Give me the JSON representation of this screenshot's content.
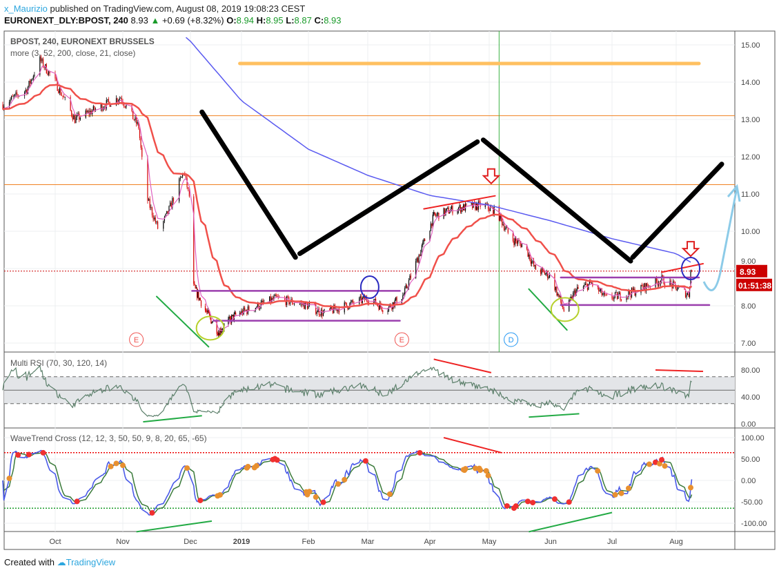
{
  "header": {
    "user": "x_Maurizio",
    "published": "published on TradingView.com, August 08, 2019 19:08:23 CEST",
    "symbol": "EURONEXT_DLY:BPOST, 240",
    "last": "8.93",
    "change": "+0.69 (+8.32%)",
    "o_label": "O:",
    "o": "8.94",
    "h_label": "H:",
    "h": "8.95",
    "l_label": "L:",
    "l": "8.87",
    "c_label": "C:",
    "c": "8.93"
  },
  "footer": {
    "created": "Created with",
    "brand": "TradingView"
  },
  "colors": {
    "up": "#000000",
    "down": "#d50000",
    "ema_fast": "#e060c0",
    "ema_mid": "#f0504a",
    "ma_slow": "#5a5af0",
    "level": "#f08020",
    "target": "#ffc060",
    "accent": "#cc0000"
  },
  "chart_data": [
    {
      "type": "candlestick",
      "title": "BPOST, 240, EURONEXT BRUSSELS",
      "subtitle": "more (3, 52, 200, close, 21, close)",
      "ylim": [
        6.8,
        15.4
      ],
      "yticks": [
        "7.00",
        "8.00",
        "9.00",
        "10.00",
        "11.00",
        "12.00",
        "13.00",
        "14.00",
        "15.00"
      ],
      "last_price": "8.93",
      "countdown": "01:51:38",
      "xticks": [
        {
          "label": "Oct",
          "date": "2018-10-01"
        },
        {
          "label": "Nov",
          "date": "2018-11-01"
        },
        {
          "label": "Dec",
          "date": "2018-12-01"
        },
        {
          "label": "2019",
          "date": "2019-01-01"
        },
        {
          "label": "Feb",
          "date": "2019-02-01"
        },
        {
          "label": "Mar",
          "date": "2019-03-01"
        },
        {
          "label": "Apr",
          "date": "2019-04-01"
        },
        {
          "label": "May",
          "date": "2019-05-01"
        },
        {
          "label": "Jun",
          "date": "2019-06-01"
        },
        {
          "label": "Jul",
          "date": "2019-07-01"
        },
        {
          "label": "Aug",
          "date": "2019-08-01"
        }
      ],
      "price_path": [
        [
          "2018-09-07",
          13.4
        ],
        [
          "2018-09-18",
          13.8
        ],
        [
          "2018-09-24",
          14.6
        ],
        [
          "2018-10-01",
          14.0
        ],
        [
          "2018-10-10",
          13.0
        ],
        [
          "2018-10-17",
          13.2
        ],
        [
          "2018-10-31",
          13.6
        ],
        [
          "2018-11-08",
          12.8
        ],
        [
          "2018-11-11",
          11.0
        ],
        [
          "2018-11-17",
          10.0
        ],
        [
          "2018-11-21",
          10.5
        ],
        [
          "2018-11-28",
          11.6
        ],
        [
          "2018-12-01",
          10.8
        ],
        [
          "2018-12-03",
          8.5
        ],
        [
          "2018-12-11",
          7.8
        ],
        [
          "2018-12-18",
          7.3
        ],
        [
          "2018-12-27",
          7.7
        ],
        [
          "2019-01-17",
          8.2
        ],
        [
          "2019-02-01",
          8.0
        ],
        [
          "2019-02-08",
          7.8
        ],
        [
          "2019-03-01",
          8.2
        ],
        [
          "2019-03-10",
          7.9
        ],
        [
          "2019-03-19",
          8.3
        ],
        [
          "2019-03-24",
          9.0
        ],
        [
          "2019-04-03",
          10.4
        ],
        [
          "2019-04-13",
          10.6
        ],
        [
          "2019-04-28",
          10.7
        ],
        [
          "2019-05-05",
          10.5
        ],
        [
          "2019-05-12",
          9.8
        ],
        [
          "2019-05-19",
          9.6
        ],
        [
          "2019-05-24",
          9.0
        ],
        [
          "2019-06-01",
          8.8
        ],
        [
          "2019-06-08",
          7.8
        ],
        [
          "2019-06-13",
          8.4
        ],
        [
          "2019-06-21",
          8.6
        ],
        [
          "2019-06-28",
          8.2
        ],
        [
          "2019-07-08",
          8.3
        ],
        [
          "2019-07-25",
          8.7
        ],
        [
          "2019-08-07",
          8.3
        ],
        [
          "2019-08-08",
          8.93
        ]
      ],
      "ma200_path": [
        [
          "2018-11-29",
          15.2
        ],
        [
          "2019-01-01",
          13.5
        ],
        [
          "2019-02-01",
          12.2
        ],
        [
          "2019-03-01",
          11.5
        ],
        [
          "2019-04-01",
          10.96
        ],
        [
          "2019-05-01",
          10.7
        ],
        [
          "2019-06-01",
          10.28
        ],
        [
          "2019-07-01",
          9.8
        ],
        [
          "2019-08-01",
          9.4
        ],
        [
          "2019-08-08",
          9.17
        ]
      ],
      "levels": [
        13.1,
        11.25
      ],
      "events": [
        {
          "label": "E",
          "date": "2018-11-07"
        },
        {
          "label": "E",
          "date": "2019-03-18"
        },
        {
          "label": "D",
          "date": "2019-05-12"
        }
      ],
      "vline_date": "2019-05-06",
      "drawings": {
        "zigzag1": [
          [
            "2018-12-08",
            13.2
          ],
          [
            "2019-01-26",
            9.3
          ]
        ],
        "zigzag2": [
          [
            "2019-01-28",
            9.4
          ],
          [
            "2019-04-25",
            12.4
          ]
        ],
        "zigzag3": [
          [
            "2019-04-28",
            12.45
          ],
          [
            "2019-07-10",
            9.2
          ]
        ],
        "zigzag4": [
          [
            "2019-07-11",
            9.3
          ],
          [
            "2019-08-23",
            11.8
          ]
        ],
        "target": [
          [
            "2018-12-31",
            14.5
          ],
          [
            "2019-08-12",
            14.5
          ]
        ],
        "range_high_1": [
          [
            "2018-12-02",
            8.4
          ],
          [
            "2019-03-17",
            8.4
          ]
        ],
        "range_low_1": [
          [
            "2018-12-15",
            7.6
          ],
          [
            "2019-03-17",
            7.6
          ]
        ],
        "range_high_2": [
          [
            "2019-06-06",
            8.76
          ],
          [
            "2019-08-12",
            8.76
          ]
        ],
        "range_low_2": [
          [
            "2019-06-06",
            8.02
          ],
          [
            "2019-08-17",
            8.02
          ]
        ],
        "red_trend_1": [
          [
            "2019-03-29",
            10.6
          ],
          [
            "2019-05-04",
            10.95
          ]
        ],
        "red_trend_2": [
          [
            "2019-07-25",
            8.9
          ],
          [
            "2019-08-14",
            9.13
          ]
        ],
        "green_trend_1": [
          [
            "2018-11-16",
            8.25
          ],
          [
            "2018-12-12",
            6.9
          ]
        ],
        "green_trend_2": [
          [
            "2019-05-21",
            8.45
          ],
          [
            "2019-06-09",
            7.35
          ]
        ]
      }
    },
    {
      "type": "line",
      "title": "Multi RSI (70, 30, 120, 14)",
      "ylim": [
        0,
        100
      ],
      "yticks": [
        "0.00",
        "40.00",
        "80.00"
      ],
      "bands": [
        30,
        50,
        70
      ]
    },
    {
      "type": "line",
      "title": "WaveTrend Cross (12, 12, 3, 50, 50, 9, 8, 20, 65, -65)",
      "ylim": [
        -110,
        110
      ],
      "yticks": [
        "-100.00",
        "-50.00",
        "0.00",
        "50.00",
        "100.00"
      ],
      "overbought": 65,
      "oversold": -65
    }
  ]
}
